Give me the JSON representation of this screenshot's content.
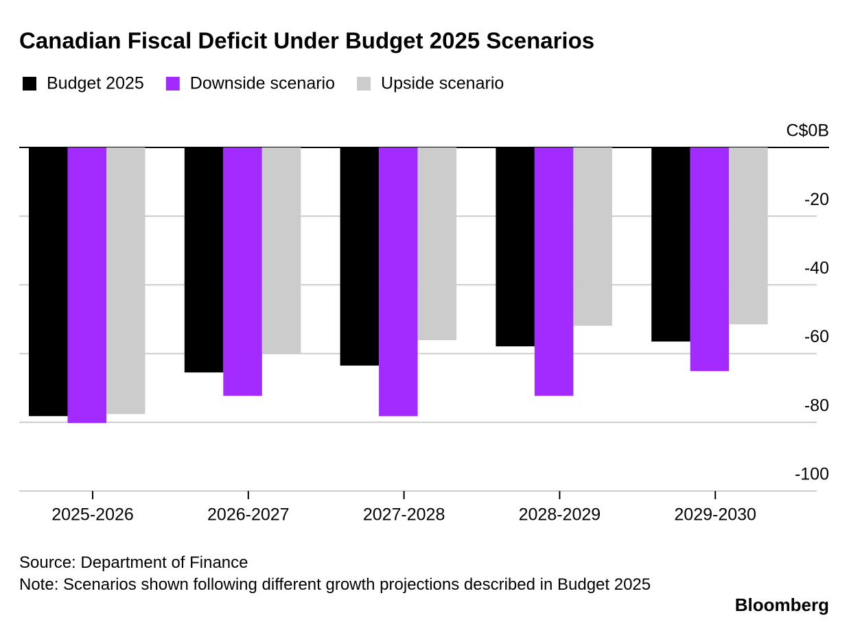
{
  "chart_data": {
    "type": "bar",
    "title": "Canadian Fiscal Deficit Under Budget 2025 Scenarios",
    "categories": [
      "2025-2026",
      "2026-2027",
      "2027-2028",
      "2028-2029",
      "2029-2030"
    ],
    "series": [
      {
        "name": "Budget 2025",
        "color": "#000000",
        "values": [
          -78.2,
          -65.5,
          -63.5,
          -57.9,
          -56.5
        ]
      },
      {
        "name": "Downside scenario",
        "color": "#a42bff",
        "values": [
          -80.2,
          -72.3,
          -78.2,
          -72.3,
          -65.1
        ]
      },
      {
        "name": "Upside scenario",
        "color": "#cccccc",
        "values": [
          -77.6,
          -59.9,
          -56.1,
          -51.9,
          -51.5
        ]
      }
    ],
    "ylim": [
      -100,
      0
    ],
    "yticks": [
      {
        "value": 0,
        "label": "C$0B"
      },
      -20,
      -40,
      -60,
      -80,
      -100
    ],
    "grid": true,
    "source": "Source: Department of Finance",
    "note": "Note: Scenarios shown following different growth projections described in Budget 2025",
    "brand": "Bloomberg"
  }
}
